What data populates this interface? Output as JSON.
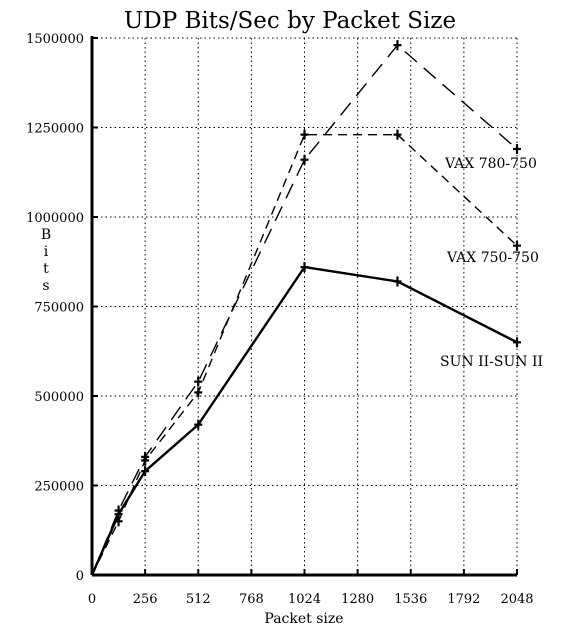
{
  "chart_data": {
    "type": "line",
    "title": "UDP Bits/Sec by Packet Size",
    "xlabel": "Packet size",
    "ylabel": "Bits",
    "x_ticks": [
      0,
      256,
      512,
      768,
      1024,
      1280,
      1536,
      1792,
      2048
    ],
    "y_ticks": [
      0,
      250000,
      500000,
      750000,
      1000000,
      1250000,
      1500000
    ],
    "x_tick_labels": [
      "0",
      "256",
      "512",
      "768",
      "1024",
      "1280",
      "1536",
      "1792",
      "2048"
    ],
    "y_tick_labels": [
      "0",
      "250000",
      "500000",
      "750000",
      "1000000",
      "1250000",
      "1500000"
    ],
    "xlim": [
      0,
      2048
    ],
    "ylim": [
      0,
      1500000
    ],
    "grid": true,
    "series": [
      {
        "name": "VAX 780-750",
        "style": "long-dash",
        "points": [
          [
            0,
            0
          ],
          [
            128,
            180000
          ],
          [
            256,
            330000
          ],
          [
            512,
            540000
          ],
          [
            1024,
            1160000
          ],
          [
            1472,
            1480000
          ],
          [
            2048,
            1190000
          ]
        ]
      },
      {
        "name": "VAX 750-750",
        "style": "short-dash",
        "points": [
          [
            0,
            0
          ],
          [
            128,
            150000
          ],
          [
            256,
            320000
          ],
          [
            512,
            510000
          ],
          [
            1024,
            1230000
          ],
          [
            1472,
            1230000
          ],
          [
            2048,
            920000
          ]
        ]
      },
      {
        "name": "SUN II-SUN II",
        "style": "solid",
        "points": [
          [
            0,
            0
          ],
          [
            128,
            170000
          ],
          [
            256,
            290000
          ],
          [
            512,
            420000
          ],
          [
            1024,
            860000
          ],
          [
            1472,
            820000
          ],
          [
            2048,
            650000
          ]
        ]
      }
    ]
  }
}
